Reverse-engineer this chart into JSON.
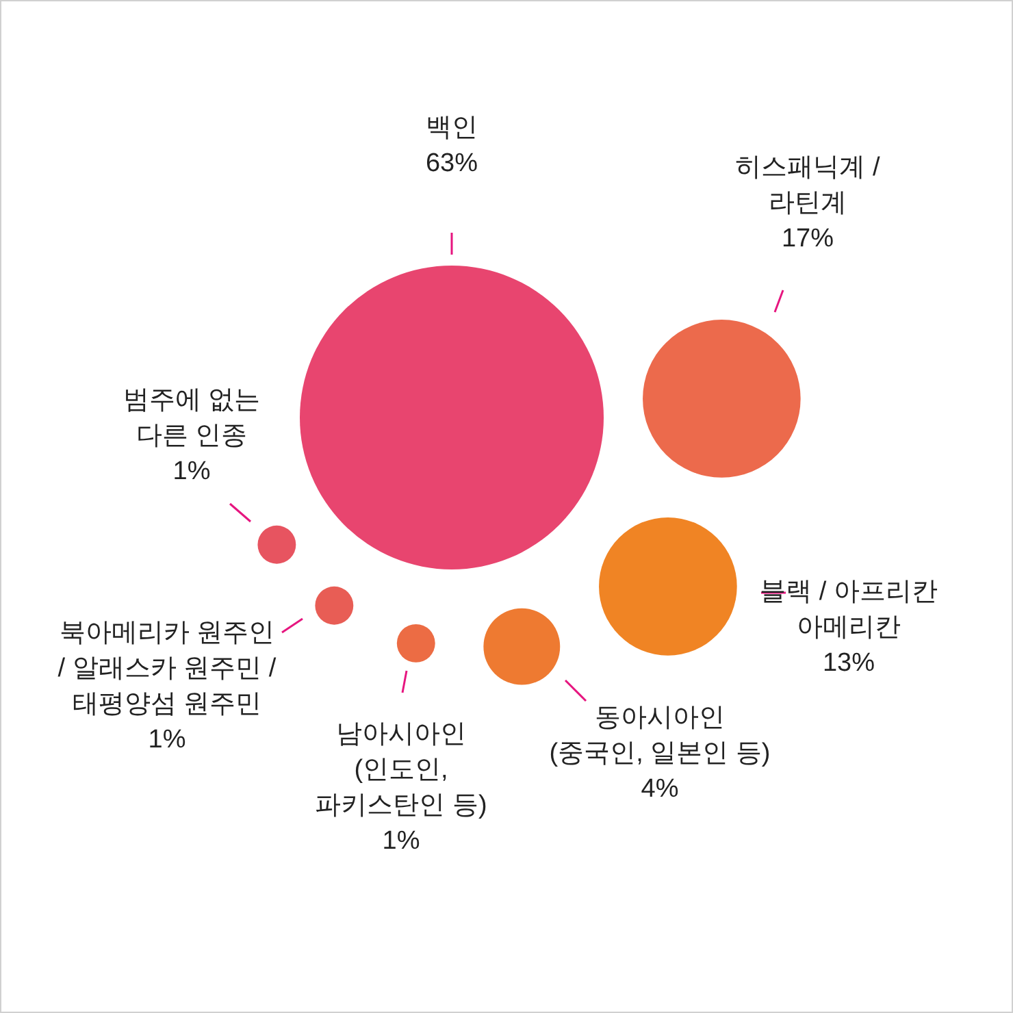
{
  "chart_data": {
    "type": "other",
    "categories": [
      "백인",
      "히스패닉계 /\n라틴계",
      "블랙 / 아프리칸\n아메리칸",
      "동아시아인\n(중국인, 일본인 등)",
      "남아시아인\n(인도인,\n파키스탄인 등)",
      "북아메리카 원주인\n/ 알래스카 원주민 /\n태평양섬 원주민",
      "범주에 없는\n다른 인종"
    ],
    "values": [
      63,
      17,
      13,
      4,
      1,
      1,
      1
    ],
    "value_labels": [
      "63%",
      "17%",
      "13%",
      "4%",
      "1%",
      "1%",
      "1%"
    ],
    "colors": [
      "#e8456f",
      "#ec6a4c",
      "#f08424",
      "#ee7a31",
      "#ec6c44",
      "#e85d55",
      "#e75460"
    ]
  }
}
